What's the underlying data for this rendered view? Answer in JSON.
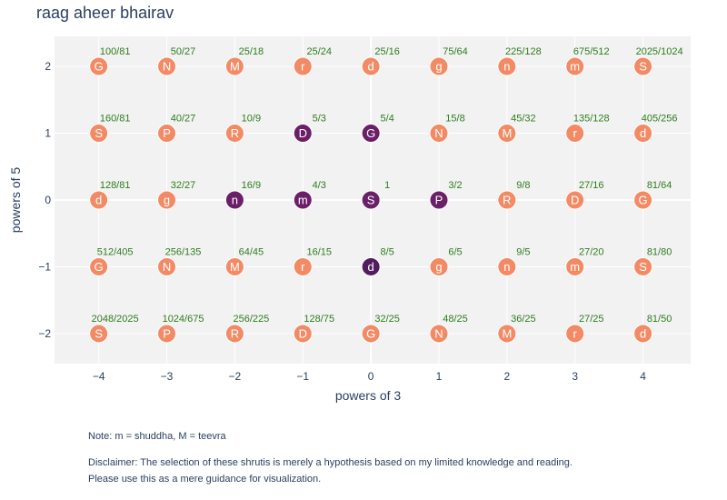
{
  "chart_data": {
    "type": "scatter",
    "title": "raag aheer bhairav",
    "xlabel": "powers of 3",
    "ylabel": "powers of 5",
    "xlim": [
      -4.65,
      4.7
    ],
    "ylim": [
      -2.45,
      2.45
    ],
    "x_ticks": [
      -4,
      -3,
      -2,
      -1,
      0,
      1,
      2,
      3,
      4
    ],
    "y_ticks": [
      -2,
      -1,
      0,
      1,
      2
    ],
    "grid": true,
    "colors": {
      "plot_bg": "#f2f2f2",
      "unselected": "#f28b65",
      "selected": "#6a1f68",
      "selected_dark": "#531c5f",
      "ratio_text": "#2e7d1e",
      "marker_text": "#ffffff"
    },
    "points": [
      {
        "x": -4,
        "y": 2,
        "label": "G",
        "ratio": "100/81",
        "selected": false
      },
      {
        "x": -3,
        "y": 2,
        "label": "N",
        "ratio": "50/27",
        "selected": false
      },
      {
        "x": -2,
        "y": 2,
        "label": "M",
        "ratio": "25/18",
        "selected": false
      },
      {
        "x": -1,
        "y": 2,
        "label": "r",
        "ratio": "25/24",
        "selected": false
      },
      {
        "x": 0,
        "y": 2,
        "label": "d",
        "ratio": "25/16",
        "selected": false
      },
      {
        "x": 1,
        "y": 2,
        "label": "g",
        "ratio": "75/64",
        "selected": false
      },
      {
        "x": 2,
        "y": 2,
        "label": "n",
        "ratio": "225/128",
        "selected": false
      },
      {
        "x": 3,
        "y": 2,
        "label": "m",
        "ratio": "675/512",
        "selected": false
      },
      {
        "x": 4,
        "y": 2,
        "label": "S",
        "ratio": "2025/1024",
        "selected": false
      },
      {
        "x": -4,
        "y": 1,
        "label": "S",
        "ratio": "160/81",
        "selected": false
      },
      {
        "x": -3,
        "y": 1,
        "label": "P",
        "ratio": "40/27",
        "selected": false
      },
      {
        "x": -2,
        "y": 1,
        "label": "R",
        "ratio": "10/9",
        "selected": false
      },
      {
        "x": -1,
        "y": 1,
        "label": "D",
        "ratio": "5/3",
        "selected": true
      },
      {
        "x": 0,
        "y": 1,
        "label": "G",
        "ratio": "5/4",
        "selected": true
      },
      {
        "x": 1,
        "y": 1,
        "label": "N",
        "ratio": "15/8",
        "selected": false
      },
      {
        "x": 2,
        "y": 1,
        "label": "M",
        "ratio": "45/32",
        "selected": false
      },
      {
        "x": 3,
        "y": 1,
        "label": "r",
        "ratio": "135/128",
        "selected": false
      },
      {
        "x": 4,
        "y": 1,
        "label": "d",
        "ratio": "405/256",
        "selected": false
      },
      {
        "x": -4,
        "y": 0,
        "label": "d",
        "ratio": "128/81",
        "selected": false
      },
      {
        "x": -3,
        "y": 0,
        "label": "g",
        "ratio": "32/27",
        "selected": false
      },
      {
        "x": -2,
        "y": 0,
        "label": "n",
        "ratio": "16/9",
        "selected": true
      },
      {
        "x": -1,
        "y": 0,
        "label": "m",
        "ratio": "4/3",
        "selected": true
      },
      {
        "x": 0,
        "y": 0,
        "label": "S",
        "ratio": "1",
        "selected": true
      },
      {
        "x": 1,
        "y": 0,
        "label": "P",
        "ratio": "3/2",
        "selected": true
      },
      {
        "x": 2,
        "y": 0,
        "label": "R",
        "ratio": "9/8",
        "selected": false
      },
      {
        "x": 3,
        "y": 0,
        "label": "D",
        "ratio": "27/16",
        "selected": false
      },
      {
        "x": 4,
        "y": 0,
        "label": "G",
        "ratio": "81/64",
        "selected": false
      },
      {
        "x": -4,
        "y": -1,
        "label": "G",
        "ratio": "512/405",
        "selected": false
      },
      {
        "x": -3,
        "y": -1,
        "label": "N",
        "ratio": "256/135",
        "selected": false
      },
      {
        "x": -2,
        "y": -1,
        "label": "M",
        "ratio": "64/45",
        "selected": false
      },
      {
        "x": -1,
        "y": -1,
        "label": "r",
        "ratio": "16/15",
        "selected": false
      },
      {
        "x": 0,
        "y": -1,
        "label": "d",
        "ratio": "8/5",
        "selected": true,
        "dark": true
      },
      {
        "x": 1,
        "y": -1,
        "label": "g",
        "ratio": "6/5",
        "selected": false
      },
      {
        "x": 2,
        "y": -1,
        "label": "n",
        "ratio": "9/5",
        "selected": false
      },
      {
        "x": 3,
        "y": -1,
        "label": "m",
        "ratio": "27/20",
        "selected": false
      },
      {
        "x": 4,
        "y": -1,
        "label": "S",
        "ratio": "81/80",
        "selected": false
      },
      {
        "x": -4,
        "y": -2,
        "label": "S",
        "ratio": "2048/2025",
        "selected": false
      },
      {
        "x": -3,
        "y": -2,
        "label": "P",
        "ratio": "1024/675",
        "selected": false
      },
      {
        "x": -2,
        "y": -2,
        "label": "R",
        "ratio": "256/225",
        "selected": false
      },
      {
        "x": -1,
        "y": -2,
        "label": "D",
        "ratio": "128/75",
        "selected": false
      },
      {
        "x": 0,
        "y": -2,
        "label": "G",
        "ratio": "32/25",
        "selected": false
      },
      {
        "x": 1,
        "y": -2,
        "label": "N",
        "ratio": "48/25",
        "selected": false
      },
      {
        "x": 2,
        "y": -2,
        "label": "M",
        "ratio": "36/25",
        "selected": false
      },
      {
        "x": 3,
        "y": -2,
        "label": "r",
        "ratio": "27/25",
        "selected": false
      },
      {
        "x": 4,
        "y": -2,
        "label": "d",
        "ratio": "81/50",
        "selected": false
      }
    ],
    "annotations": [
      "Note: m = shuddha, M = teevra",
      "Disclaimer: The selection of these shrutis is merely a hypothesis based on my limited knowledge and reading.",
      "Please use this as a mere guidance for visualization."
    ]
  }
}
